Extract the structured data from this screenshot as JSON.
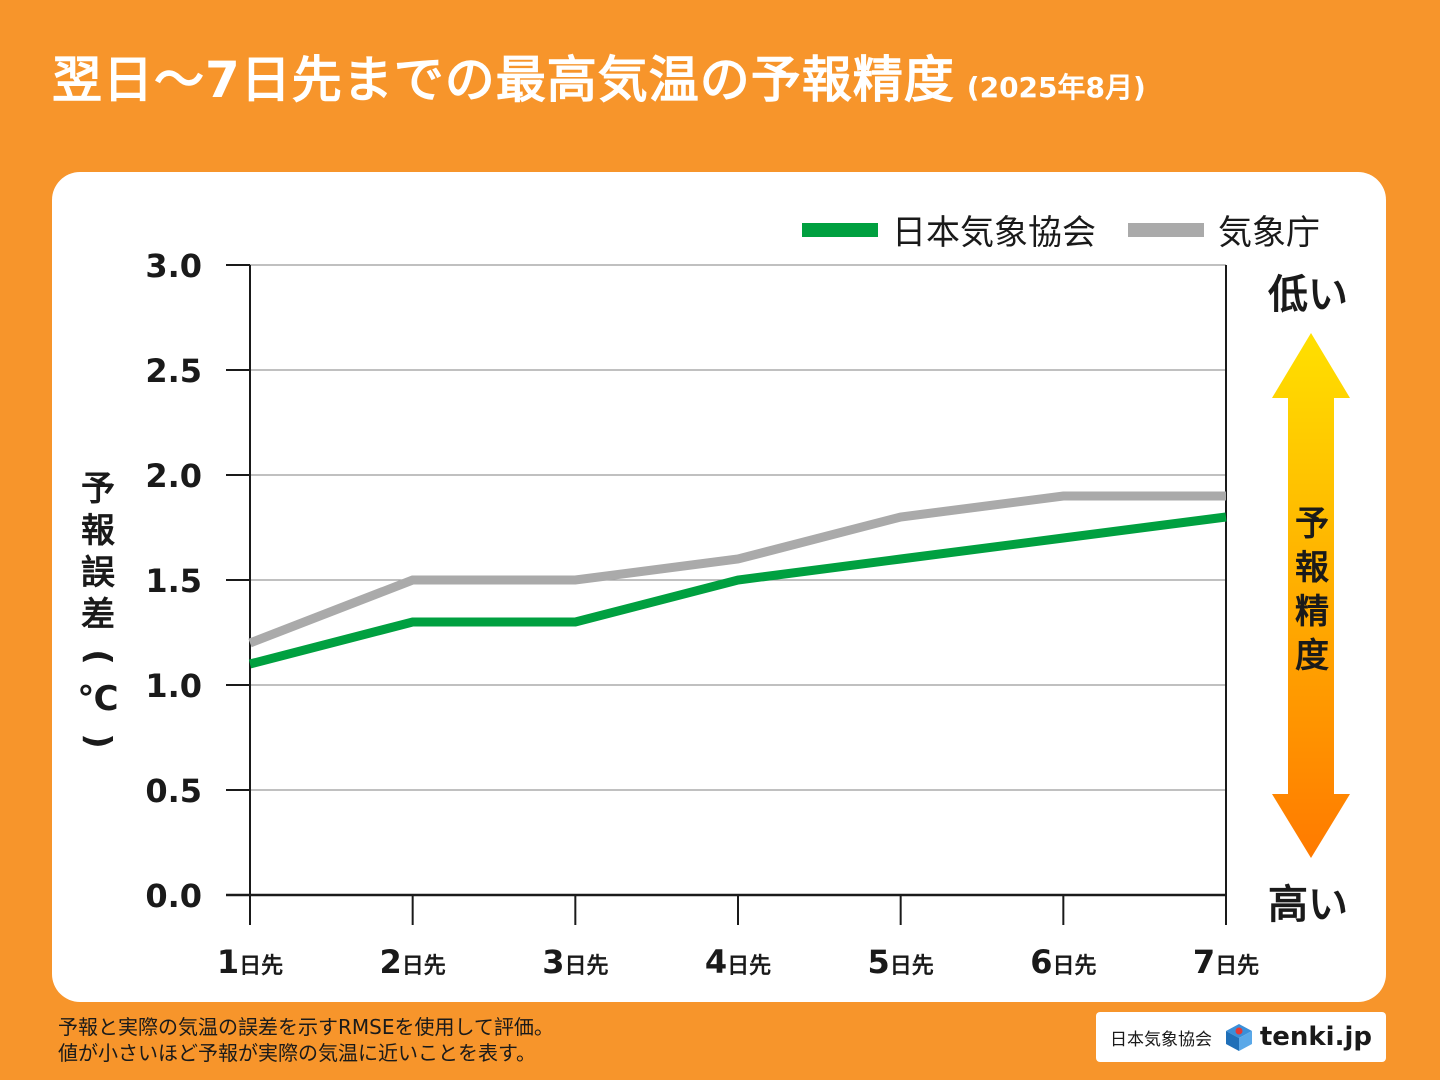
{
  "title": {
    "main": "翌日〜7日先までの最高気温の予報精度",
    "sub": "(2025年8月)"
  },
  "legend": [
    {
      "label": "日本気象協会",
      "color": "#00A040"
    },
    {
      "label": "気象庁",
      "color": "#AAAAAA"
    }
  ],
  "accuracy_axis": {
    "top": "低い",
    "bottom": "高い",
    "label": [
      "予",
      "報",
      "精",
      "度"
    ]
  },
  "ylabel_chars": [
    "予",
    "報",
    "誤",
    "差",
    "(",
    "℃",
    ")"
  ],
  "chart_data": {
    "type": "line",
    "title": "翌日〜7日先までの最高気温の予報精度",
    "categories": [
      "1",
      "2",
      "3",
      "4",
      "5",
      "6",
      "7"
    ],
    "category_suffix": "日先",
    "ylabel": "予報誤差(℃)",
    "ylim": [
      0.0,
      3.0
    ],
    "yticks": [
      "0.0",
      "0.5",
      "1.0",
      "1.5",
      "2.0",
      "2.5",
      "3.0"
    ],
    "grid": true,
    "series": [
      {
        "name": "日本気象協会",
        "color": "#00A040",
        "values": [
          1.1,
          1.3,
          1.3,
          1.5,
          1.6,
          1.7,
          1.8
        ]
      },
      {
        "name": "気象庁",
        "color": "#AAAAAA",
        "values": [
          1.2,
          1.5,
          1.5,
          1.6,
          1.8,
          1.9,
          1.9
        ]
      }
    ]
  },
  "footnote": [
    "予報と実際の気温の誤差を示すRMSEを使用して評価。",
    "値が小さいほど予報が実際の気温に近いことを表す。"
  ],
  "brand": {
    "org": "日本気象協会",
    "site": "tenki.jp"
  }
}
